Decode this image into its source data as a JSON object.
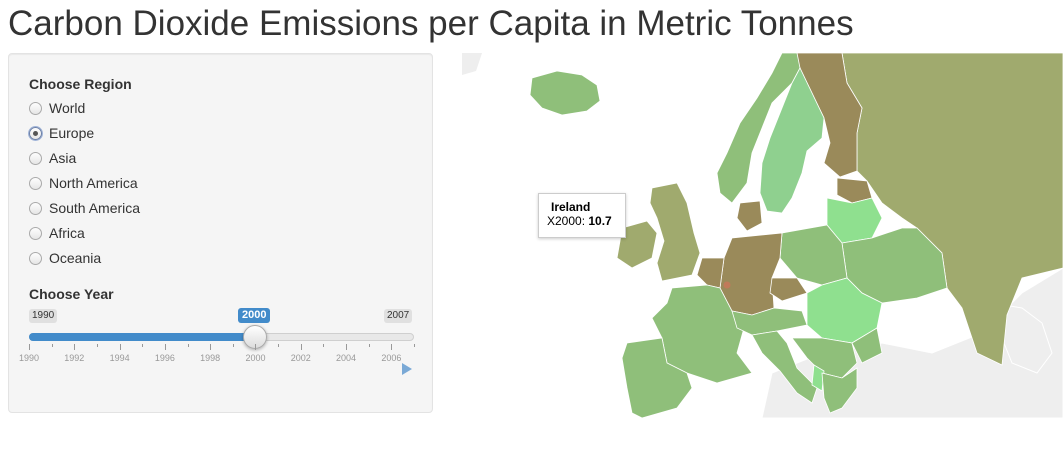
{
  "page": {
    "title": "Carbon Dioxide Emissions per Capita in Metric Tonnes"
  },
  "region_control": {
    "label": "Choose Region",
    "selected": "Europe",
    "options": [
      "World",
      "Europe",
      "Asia",
      "North America",
      "South America",
      "Africa",
      "Oceania"
    ]
  },
  "year_control": {
    "label": "Choose Year",
    "min": "1990",
    "max": "2007",
    "value": "2000",
    "tick_labels": [
      "1990",
      "1992",
      "1994",
      "1996",
      "1998",
      "2000",
      "2002",
      "2004",
      "2006"
    ],
    "play_icon": "play-icon",
    "accent_color": "#428bca"
  },
  "map": {
    "region": "Europe",
    "colors": {
      "low": "#8fe08f",
      "mid": "#8fbf7a",
      "high": "#a0aa6e",
      "very_high": "#9a8a5a",
      "outlier": "#c07a5a",
      "no_data": "#eeeeee",
      "water": "#ffffff"
    },
    "tooltip": {
      "country": "Ireland",
      "series": "X2000",
      "value": "10.7"
    }
  }
}
